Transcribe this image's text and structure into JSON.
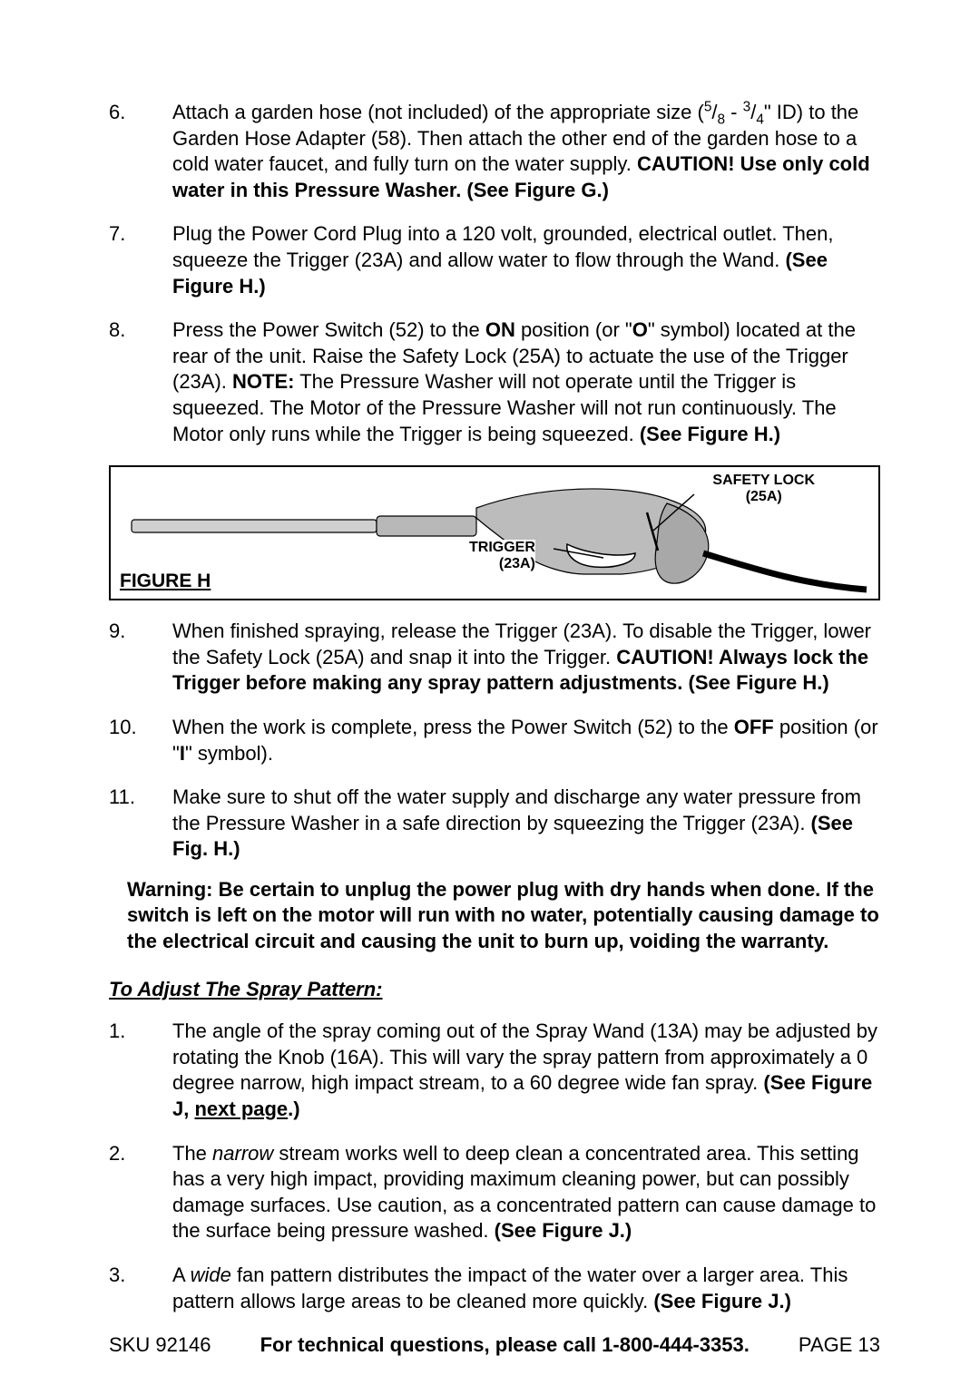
{
  "steps_top": [
    {
      "num": "6.",
      "parts": [
        {
          "t": "Attach a garden hose (not included) of the appropriate size ("
        },
        {
          "t": "5",
          "sup": true
        },
        {
          "t": "/"
        },
        {
          "t": "8",
          "sub": true
        },
        {
          "t": " - "
        },
        {
          "t": "3",
          "sup": true
        },
        {
          "t": "/"
        },
        {
          "t": "4",
          "sub": true
        },
        {
          "t": "\" ID) to the Garden Hose Adapter (58).  Then attach the other end of the garden hose to a cold water faucet, and fully turn on the water supply.  "
        },
        {
          "t": "CAUTION!  Use only cold water in this Pressure Washer.  (See Figure G.)",
          "bold": true
        }
      ]
    },
    {
      "num": "7.",
      "parts": [
        {
          "t": "Plug the Power Cord Plug into a 120 volt, grounded, electrical outlet. Then, squeeze the Trigger (23A) and allow water to flow through the Wand. "
        },
        {
          "t": "(See Figure H.)",
          "bold": true
        }
      ]
    },
    {
      "num": "8.",
      "parts": [
        {
          "t": "Press the Power Switch (52) to the "
        },
        {
          "t": "ON",
          "bold": true
        },
        {
          "t": " position (or \""
        },
        {
          "t": "O",
          "bold": true
        },
        {
          "t": "\" symbol) located at the rear of the unit.  Raise the Safety Lock (25A) to actuate the use of the Trigger (23A).  "
        },
        {
          "t": "NOTE:",
          "bold": true
        },
        {
          "t": "  The Pressure Washer will not operate until the Trigger is squeezed.  The Motor of the Pressure Washer will not run continuously.  The Motor only runs while the Trigger is being squeezed.  "
        },
        {
          "t": "(See Figure H.)",
          "bold": true
        }
      ]
    }
  ],
  "figure": {
    "label": "FIGURE H",
    "callouts": {
      "trigger": {
        "l1": "TRIGGER",
        "l2": "(23A)"
      },
      "safety": {
        "l1": "SAFETY LOCK",
        "l2": "(25A)"
      }
    }
  },
  "steps_mid": [
    {
      "num": "9.",
      "parts": [
        {
          "t": "When finished spraying, release the Trigger (23A).  To disable the Trigger, lower the Safety Lock (25A) and snap it into the Trigger.  "
        },
        {
          "t": "CAUTION!  Always lock the Trigger before making any spray pattern adjustments.  (See Figure H.)",
          "bold": true
        }
      ]
    },
    {
      "num": "10.",
      "parts": [
        {
          "t": "When the work is complete, press the Power Switch (52) to the "
        },
        {
          "t": "OFF",
          "bold": true
        },
        {
          "t": " position (or \""
        },
        {
          "t": "I",
          "bold": true
        },
        {
          "t": "\" symbol)."
        }
      ]
    },
    {
      "num": "11.",
      "parts": [
        {
          "t": "Make sure to shut off the water supply and discharge any water pressure from the Pressure Washer in a safe direction by squeezing the Trigger (23A).  "
        },
        {
          "t": "(See Fig. H.)",
          "bold": true
        }
      ]
    }
  ],
  "warning": "Warning:  Be certain to unplug the power plug with dry hands when done.  If the switch is left on the motor will run with no water, potentially causing damage to the electrical circuit and causing the unit to burn up, voiding the warranty.",
  "section_title": "To Adjust The Spray Pattern:",
  "steps_bottom": [
    {
      "num": "1.",
      "parts": [
        {
          "t": "The angle of the spray coming out of the Spray Wand (13A) may be adjusted by rotating the Knob (16A).  This will vary the spray pattern from approximately a 0 degree narrow, high impact stream, to a 60 degree wide fan spray. "
        },
        {
          "t": "(See Figure J, ",
          "bold": true
        },
        {
          "t": "next page",
          "bold": true,
          "underline": true
        },
        {
          "t": ".)",
          "bold": true
        }
      ]
    },
    {
      "num": "2.",
      "parts": [
        {
          "t": "The "
        },
        {
          "t": "narrow",
          "italic": true
        },
        {
          "t": " stream works well to deep clean a concentrated area.  This setting has a very high impact, providing maximum cleaning power, but can possibly damage surfaces.  Use caution, as a concentrated pattern can cause damage to the surface being pressure washed.  "
        },
        {
          "t": "(See Figure J.)",
          "bold": true
        }
      ]
    },
    {
      "num": "3.",
      "parts": [
        {
          "t": "A "
        },
        {
          "t": "wide",
          "italic": true
        },
        {
          "t": " fan pattern distributes the impact of the water over a larger area.  This pattern allows large areas to be cleaned more quickly.  "
        },
        {
          "t": "(See Figure J.)",
          "bold": true
        }
      ]
    }
  ],
  "footer": {
    "sku": "SKU 92146",
    "mid": "For technical questions, please call 1-800-444-3353.",
    "page": "PAGE 13"
  }
}
